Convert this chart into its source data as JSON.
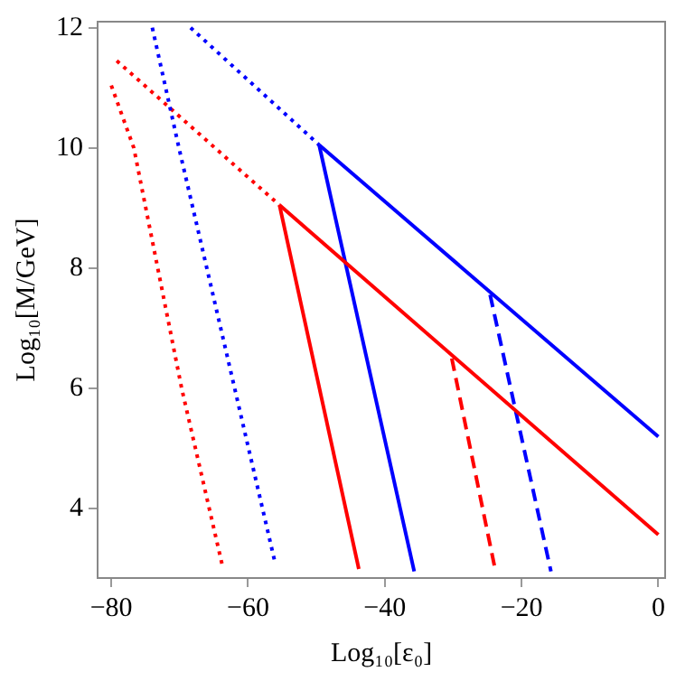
{
  "chart_data": {
    "type": "line",
    "xlabel": "Log₁₀[ε₀]",
    "ylabel": "Log₁₀[M/GeV]",
    "xlim": [
      -82,
      1
    ],
    "ylim": [
      2.85,
      12.1
    ],
    "xticks": [
      -80,
      -60,
      -40,
      -20,
      0
    ],
    "yticks": [
      4,
      6,
      8,
      10,
      12
    ],
    "grid": false,
    "legend": false,
    "marker": "none",
    "series": [
      {
        "color": "#ff0000",
        "line_style": "dotted",
        "x": [
          -80,
          -76.7,
          -69.7,
          -63.8
        ],
        "values": [
          11.04,
          10,
          6,
          3.08
        ]
      },
      {
        "color": "#0000ff",
        "line_style": "dotted",
        "x": [
          -74,
          -70.1,
          -56
        ],
        "values": [
          12,
          10,
          3.08
        ]
      },
      {
        "color": "#ff0000",
        "line_style": "dotted",
        "x": [
          -79.2,
          -55.4
        ],
        "values": [
          11.45,
          9.05
        ]
      },
      {
        "color": "#ff0000",
        "line_style": "solid",
        "x": [
          -55.4,
          0
        ],
        "values": [
          9.05,
          3.57
        ]
      },
      {
        "color": "#ff0000",
        "line_style": "solid",
        "x": [
          -55.4,
          -43.8
        ],
        "values": [
          9.05,
          3.0
        ]
      },
      {
        "color": "#0000ff",
        "line_style": "dotted",
        "x": [
          -68.4,
          -49.6
        ],
        "values": [
          12,
          10.05
        ]
      },
      {
        "color": "#0000ff",
        "line_style": "solid",
        "x": [
          -49.6,
          0
        ],
        "values": [
          10.05,
          5.2
        ]
      },
      {
        "color": "#0000ff",
        "line_style": "solid",
        "x": [
          -49.6,
          -35.7
        ],
        "values": [
          10.05,
          2.96
        ]
      },
      {
        "color": "#ff0000",
        "line_style": "dashed",
        "x": [
          -30.2,
          -23.8
        ],
        "values": [
          6.5,
          2.96
        ]
      },
      {
        "color": "#0000ff",
        "line_style": "dashed",
        "x": [
          -24.6,
          -15.7
        ],
        "values": [
          7.56,
          2.96
        ]
      }
    ]
  }
}
